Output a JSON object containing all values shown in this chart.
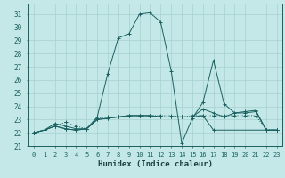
{
  "title": "",
  "xlabel": "Humidex (Indice chaleur)",
  "background_color": "#c4e8e8",
  "grid_color": "#a8d0d0",
  "line_color": "#1a6060",
  "xlim": [
    -0.5,
    23.5
  ],
  "ylim": [
    21,
    31.8
  ],
  "xticks": [
    0,
    1,
    2,
    3,
    4,
    5,
    6,
    7,
    8,
    9,
    10,
    11,
    12,
    13,
    14,
    15,
    16,
    17,
    18,
    19,
    20,
    21,
    22,
    23
  ],
  "yticks": [
    21,
    22,
    23,
    24,
    25,
    26,
    27,
    28,
    29,
    30,
    31
  ],
  "series": [
    {
      "x": [
        0,
        1,
        2,
        3,
        4,
        5,
        6,
        7,
        8,
        9,
        10,
        11,
        12,
        13,
        14,
        15,
        16,
        17,
        18,
        19,
        20,
        21,
        22,
        23
      ],
      "y": [
        22.0,
        22.2,
        22.5,
        22.8,
        22.5,
        22.3,
        23.1,
        23.2,
        23.2,
        23.3,
        23.3,
        23.3,
        23.3,
        23.3,
        23.2,
        23.3,
        23.3,
        23.3,
        23.3,
        23.3,
        23.3,
        23.3,
        22.2,
        22.2
      ],
      "linestyle": "dotted"
    },
    {
      "x": [
        0,
        1,
        2,
        3,
        4,
        5,
        6,
        7,
        8,
        9,
        10,
        11,
        12,
        13,
        14,
        15,
        16,
        17,
        18,
        19,
        20,
        21,
        22,
        23
      ],
      "y": [
        22.0,
        22.2,
        22.7,
        22.5,
        22.3,
        22.3,
        23.2,
        26.5,
        29.2,
        29.5,
        31.0,
        31.1,
        30.4,
        26.7,
        21.2,
        23.1,
        24.3,
        27.5,
        24.2,
        23.5,
        23.6,
        23.7,
        22.2,
        22.2
      ],
      "linestyle": "solid"
    },
    {
      "x": [
        0,
        1,
        2,
        3,
        4,
        5,
        6,
        7,
        8,
        9,
        10,
        11,
        12,
        13,
        14,
        15,
        16,
        17,
        18,
        19,
        20,
        21,
        22,
        23
      ],
      "y": [
        22.0,
        22.2,
        22.5,
        22.3,
        22.2,
        22.3,
        23.0,
        23.1,
        23.2,
        23.3,
        23.3,
        23.3,
        23.2,
        23.2,
        23.2,
        23.2,
        23.8,
        23.5,
        23.2,
        23.5,
        23.5,
        23.6,
        22.2,
        22.2
      ],
      "linestyle": "solid"
    },
    {
      "x": [
        0,
        1,
        2,
        3,
        4,
        5,
        6,
        7,
        8,
        9,
        10,
        11,
        12,
        13,
        14,
        15,
        16,
        17,
        22,
        23
      ],
      "y": [
        22.0,
        22.2,
        22.5,
        22.3,
        22.2,
        22.3,
        23.0,
        23.1,
        23.2,
        23.3,
        23.3,
        23.3,
        23.2,
        23.2,
        23.2,
        23.2,
        23.3,
        22.2,
        22.2,
        22.2
      ],
      "linestyle": "solid"
    }
  ]
}
